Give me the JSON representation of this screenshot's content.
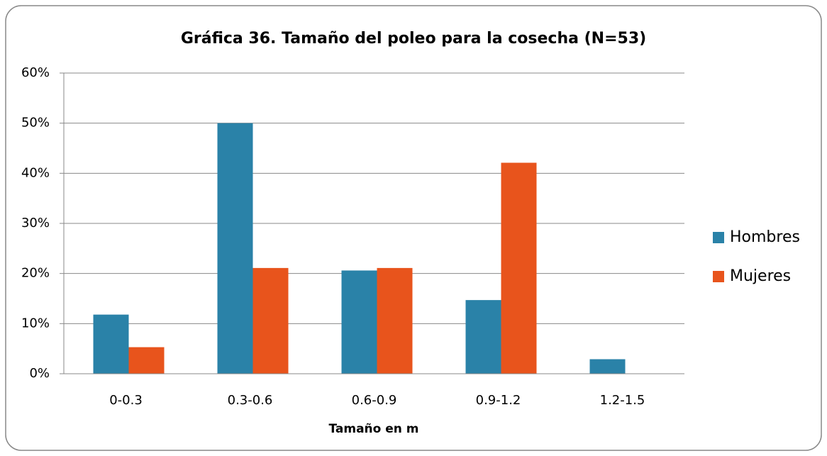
{
  "chart_data": {
    "type": "bar",
    "title": "Gráfica 36. Tamaño del poleo para la  cosecha (N=53)",
    "x_label": "Tamaño en m",
    "categories": [
      "0-0.3",
      "0.3-0.6",
      "0.6-0.9",
      "0.9-1.2",
      "1.2-1.5"
    ],
    "series": [
      {
        "name": "Hombres",
        "color": "#2a82a8",
        "values": [
          11.8,
          50,
          20.6,
          14.7,
          2.9
        ]
      },
      {
        "name": "Mujeres",
        "color": "#e8541c",
        "values": [
          5.3,
          21.1,
          21.1,
          42.1,
          0
        ]
      }
    ],
    "ylim": [
      0,
      60
    ],
    "yticks": [
      {
        "value": 0,
        "label": "0%"
      },
      {
        "value": 10,
        "label": "10%"
      },
      {
        "value": 20,
        "label": "20%"
      },
      {
        "value": 30,
        "label": "30%"
      },
      {
        "value": 40,
        "label": "40%"
      },
      {
        "value": 50,
        "label": "50%"
      },
      {
        "value": 60,
        "label": "60%"
      }
    ],
    "grid": true,
    "legend": "right"
  }
}
